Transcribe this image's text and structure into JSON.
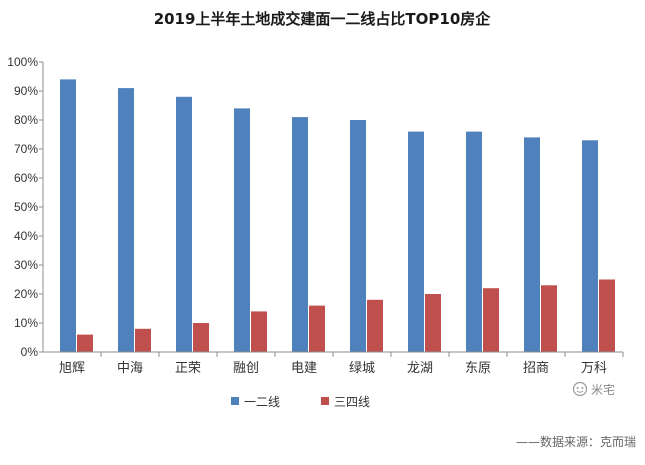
{
  "chart_data": {
    "type": "bar",
    "title": "2019上半年土地成交建面一二线占比TOP10房企",
    "categories": [
      "旭辉",
      "中海",
      "正荣",
      "融创",
      "电建",
      "绿城",
      "龙湖",
      "东原",
      "招商",
      "万科"
    ],
    "series": [
      {
        "name": "一二线",
        "color": "#4F81BD",
        "values": [
          94,
          91,
          88,
          84,
          81,
          80,
          76,
          76,
          74,
          73
        ]
      },
      {
        "name": "三四线",
        "color": "#C0504D",
        "values": [
          6,
          8,
          10,
          14,
          16,
          18,
          20,
          22,
          23,
          25
        ]
      }
    ],
    "yticks": [
      "0%",
      "10%",
      "20%",
      "30%",
      "40%",
      "50%",
      "60%",
      "70%",
      "80%",
      "90%",
      "100%"
    ],
    "ylim": [
      0,
      100
    ],
    "grid": false,
    "legend": "bottom"
  },
  "watermark": {
    "text": "米宅",
    "icon": "wechat-icon"
  },
  "source": "——数据来源：克而瑞"
}
